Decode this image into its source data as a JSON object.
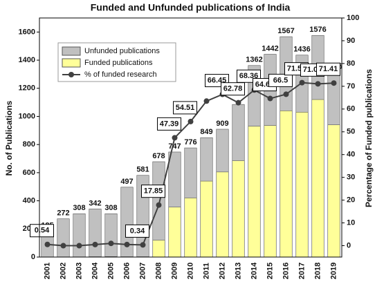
{
  "chart_data": {
    "type": "bar_line",
    "title": "Funded and Unfunded publications of India",
    "ylabel": "No. of Publications",
    "y2label": "Percentage of Funded publications",
    "categories": [
      "2001",
      "2002",
      "2003",
      "2004",
      "2005",
      "2006",
      "2007",
      "2008",
      "2009",
      "2010",
      "2011",
      "2012",
      "2013",
      "2014",
      "2015",
      "2016",
      "2017",
      "2018",
      "2019"
    ],
    "ylim": [
      0,
      1700
    ],
    "yticks": [
      0,
      200,
      400,
      600,
      800,
      1000,
      1200,
      1400,
      1600
    ],
    "y2lim": [
      -5,
      100
    ],
    "y2ticks": [
      0,
      10,
      20,
      30,
      40,
      50,
      60,
      70,
      80,
      90,
      100
    ],
    "series": [
      {
        "name": "Unfunded publications",
        "color": "#c0c0c0",
        "kind": "bar",
        "values": [
          185,
          272,
          308,
          342,
          308,
          497,
          581,
          678,
          747,
          776,
          849,
          909,
          1085,
          1362,
          1442,
          1567,
          1436,
          1576,
          1315
        ],
        "value_labels": [
          "185",
          "272",
          "308",
          "342",
          "308",
          "497",
          "581",
          "678",
          "747",
          "776",
          "849",
          "909",
          null,
          "1362",
          "1442",
          "1567",
          "1436",
          "1576",
          "1315"
        ]
      },
      {
        "name": "Funded publications",
        "color": "#ffff99",
        "kind": "bar",
        "values": [
          1,
          0,
          0,
          2,
          3,
          2,
          2,
          120,
          355,
          420,
          540,
          605,
          685,
          930,
          935,
          1040,
          1030,
          1120,
          940
        ]
      },
      {
        "name": "% of funded research",
        "color": "#404040",
        "kind": "line",
        "axis": "y2",
        "values": [
          0.54,
          0,
          0,
          0.5,
          1,
          0.5,
          0.34,
          17.85,
          47.39,
          54.51,
          63.5,
          66.45,
          62.78,
          68.36,
          64.63,
          66.5,
          71.59,
          71.07,
          71.41
        ],
        "value_labels": [
          "0.54",
          null,
          null,
          null,
          null,
          null,
          "0.34",
          "17.85",
          "47.39",
          "54.51",
          null,
          "66.45",
          "62.78",
          "68.36",
          "64.63",
          "66.5",
          "71.59",
          "71.07",
          "71.41"
        ]
      }
    ]
  }
}
